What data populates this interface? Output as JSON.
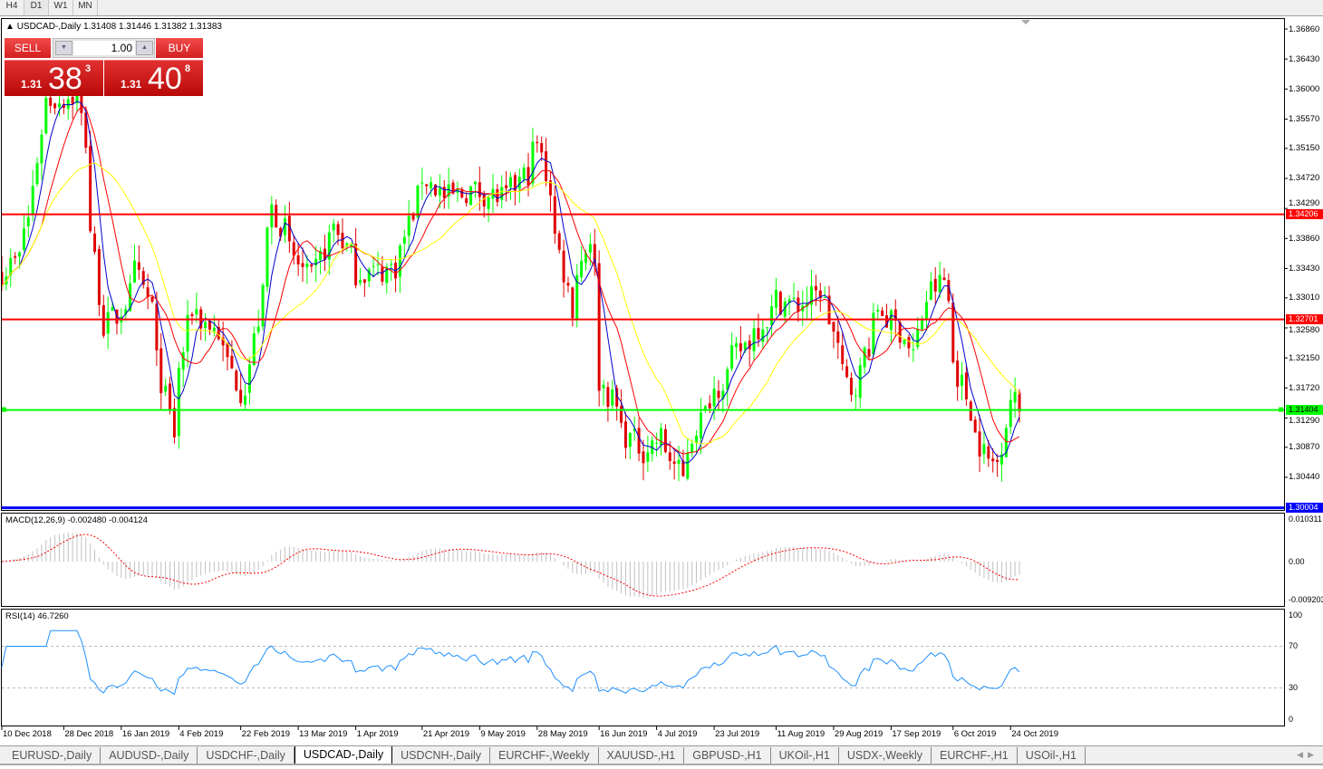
{
  "timeframes": [
    "H4",
    "D1",
    "W1",
    "MN"
  ],
  "active_timeframe": "D1",
  "chart": {
    "header": "USDCAD-,Daily  1.31408 1.31446 1.31382 1.31383",
    "price_axis_labels": [
      "1.36860",
      "1.36430",
      "1.36000",
      "1.35570",
      "1.35150",
      "1.34720",
      "1.34290",
      "1.33860",
      "1.33430",
      "1.33010",
      "1.32580",
      "1.32150",
      "1.31720",
      "1.31290",
      "1.30870",
      "1.30440"
    ],
    "horizontal_lines": [
      {
        "price": "1.34206",
        "color": "#ff0000"
      },
      {
        "price": "1.32701",
        "color": "#ff0000"
      },
      {
        "price": "1.31404",
        "color": "#00ff00"
      },
      {
        "price": "1.30004",
        "color": "#0000ff"
      }
    ],
    "date_labels": [
      "10 Dec 2018",
      "28 Dec 2018",
      "16 Jan 2019",
      "4 Feb 2019",
      "22 Feb 2019",
      "13 Mar 2019",
      "1 Apr 2019",
      "21 Apr 2019",
      "9 May 2019",
      "28 May 2019",
      "16 Jun 2019",
      "4 Jul 2019",
      "23 Jul 2019",
      "11 Aug 2019",
      "29 Aug 2019",
      "17 Sep 2019",
      "6 Oct 2019",
      "24 Oct 2019"
    ]
  },
  "trade_panel": {
    "sell_label": "SELL",
    "buy_label": "BUY",
    "lot": "1.00",
    "sell_price": {
      "prefix": "1.31",
      "big": "38",
      "sup": "3"
    },
    "buy_price": {
      "prefix": "1.31",
      "big": "40",
      "sup": "8"
    }
  },
  "macd": {
    "title": "MACD(12,26,9) -0.002480 -0.004124",
    "axis": [
      "0.010311",
      "0.00",
      "-0.009203"
    ]
  },
  "rsi": {
    "title": "RSI(14) 46.7260",
    "axis": [
      "100",
      "70",
      "30",
      "0"
    ]
  },
  "symbol_tabs": [
    "EURUSD-,Daily",
    "AUDUSD-,Daily",
    "USDCHF-,Daily",
    "USDCAD-,Daily",
    "USDCNH-,Daily",
    "EURCHF-,Weekly",
    "XAUUSD-,H1",
    "GBPUSD-,H1",
    "UKOil-,H1",
    "USDX-,Weekly",
    "EURCHF-,H1",
    "USOil-,H1"
  ],
  "active_tab": "USDCAD-,Daily",
  "colors": {
    "bull": "#00ff00",
    "bear": "#e00000",
    "ma_fast": "#0000cc",
    "ma_mid": "#ff0000",
    "ma_slow": "#ffff00",
    "macd_hist": "#c0c0c0",
    "macd_signal": "#ff0000",
    "rsi": "#1e90ff"
  },
  "chart_data": {
    "type": "candlestick",
    "symbol": "USDCAD-",
    "timeframe": "Daily",
    "ylim": [
      1.30004,
      1.3686
    ],
    "close_approx": [
      [
        "2018-12-10",
        1.3338
      ],
      [
        "2018-12-14",
        1.3358
      ],
      [
        "2018-12-18",
        1.3416
      ],
      [
        "2018-12-22",
        1.3585
      ],
      [
        "2018-12-26",
        1.3585
      ],
      [
        "2019-01-02",
        1.359
      ],
      [
        "2019-01-05",
        1.3494
      ],
      [
        "2019-01-10",
        1.3261
      ],
      [
        "2019-01-15",
        1.3274
      ],
      [
        "2019-01-21",
        1.3338
      ],
      [
        "2019-01-25",
        1.3287
      ],
      [
        "2019-02-01",
        1.3105
      ],
      [
        "2019-02-07",
        1.3287
      ],
      [
        "2019-02-16",
        1.3248
      ],
      [
        "2019-02-24",
        1.3144
      ],
      [
        "2019-03-05",
        1.3429
      ],
      [
        "2019-03-10",
        1.3377
      ],
      [
        "2019-03-17",
        1.3312
      ],
      [
        "2019-03-24",
        1.3416
      ],
      [
        "2019-03-31",
        1.3338
      ],
      [
        "2019-04-08",
        1.3338
      ],
      [
        "2019-04-14",
        1.3351
      ],
      [
        "2019-04-21",
        1.3481
      ],
      [
        "2019-04-28",
        1.3442
      ],
      [
        "2019-05-07",
        1.3455
      ],
      [
        "2019-05-18",
        1.3442
      ],
      [
        "2019-05-24",
        1.3481
      ],
      [
        "2019-05-28",
        1.352
      ],
      [
        "2019-06-02",
        1.3416
      ],
      [
        "2019-06-07",
        1.3287
      ],
      [
        "2019-06-13",
        1.339
      ],
      [
        "2019-06-17",
        1.3183
      ],
      [
        "2019-06-25",
        1.3105
      ],
      [
        "2019-06-30",
        1.3079
      ],
      [
        "2019-07-06",
        1.3105
      ],
      [
        "2019-07-12",
        1.304
      ],
      [
        "2019-07-17",
        1.3118
      ],
      [
        "2019-07-23",
        1.317
      ],
      [
        "2019-08-01",
        1.3235
      ],
      [
        "2019-08-06",
        1.3261
      ],
      [
        "2019-08-12",
        1.3299
      ],
      [
        "2019-08-18",
        1.3287
      ],
      [
        "2019-08-26",
        1.3313
      ],
      [
        "2019-08-31",
        1.3209
      ],
      [
        "2019-09-04",
        1.317
      ],
      [
        "2019-09-10",
        1.3235
      ],
      [
        "2019-09-12",
        1.3287
      ],
      [
        "2019-09-18",
        1.3261
      ],
      [
        "2019-09-24",
        1.3222
      ],
      [
        "2019-09-27",
        1.3299
      ],
      [
        "2019-10-03",
        1.3325
      ],
      [
        "2019-10-07",
        1.3209
      ],
      [
        "2019-10-11",
        1.3144
      ],
      [
        "2019-10-17",
        1.3066
      ],
      [
        "2019-10-21",
        1.3066
      ],
      [
        "2019-10-24",
        1.3157
      ],
      [
        "2019-10-28",
        1.31383
      ]
    ],
    "last_bar": {
      "open": 1.31408,
      "high": 1.31446,
      "low": 1.31382,
      "close": 1.31383
    },
    "indicators": [
      "MA fast (blue)",
      "MA (red)",
      "MA slow (yellow)",
      "MACD(12,26,9)",
      "RSI(14)"
    ],
    "rsi_levels": [
      30,
      70
    ],
    "grid": false
  }
}
